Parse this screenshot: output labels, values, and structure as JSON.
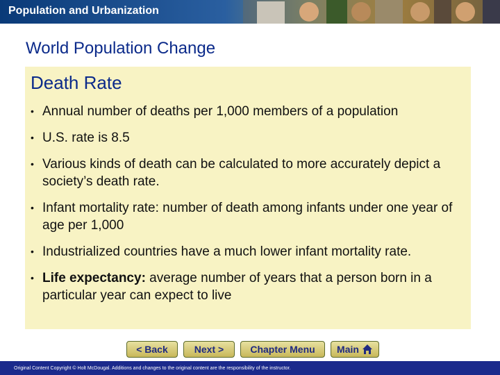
{
  "banner": {
    "title": "Population and Urbanization"
  },
  "slide": {
    "heading": "World Population Change"
  },
  "panel": {
    "title": "Death Rate",
    "bullets": [
      {
        "text": "Annual number of deaths per 1,000 members of a population"
      },
      {
        "text": "U.S. rate is 8.5"
      },
      {
        "text": "Various kinds of death can be calculated to more accurately depict a society’s death rate."
      },
      {
        "text": "Infant mortality rate: number of death among infants under one year of age per 1,000"
      },
      {
        "text": "Industrialized countries have a much lower infant mortality rate."
      },
      {
        "bold": "Life expectancy:",
        "text": " average number of years that a person born in a particular year can expect to live"
      }
    ]
  },
  "nav": {
    "back": "< Back",
    "next": "Next >",
    "chapter_menu": "Chapter Menu",
    "main": "Main"
  },
  "footer": {
    "text": "Original Content Copyright © Holt McDougal. Additions and changes to the original content are the responsibility of the instructor."
  },
  "colors": {
    "heading": "#0b2a8a",
    "panel_bg": "#f8f3c4",
    "footer_bg": "#1b2a8c",
    "nav_text": "#1f2a80"
  }
}
